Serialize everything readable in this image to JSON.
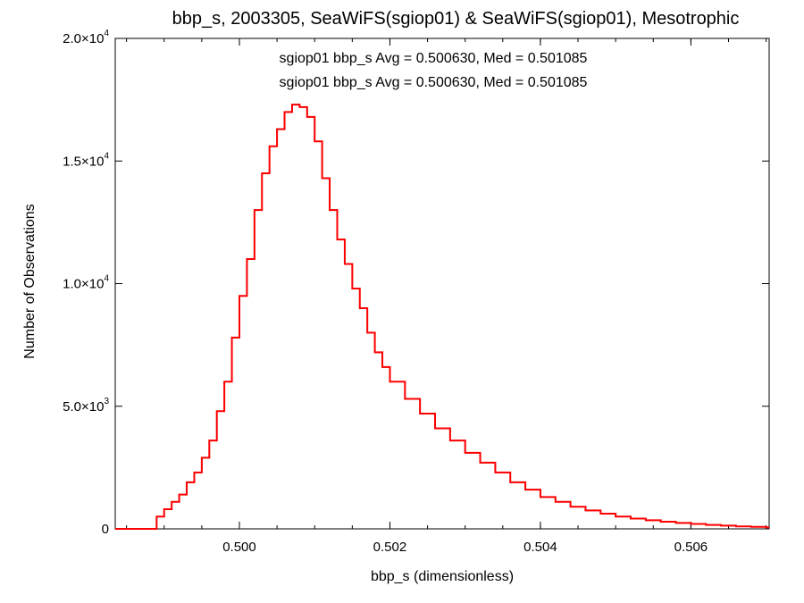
{
  "chart_data": {
    "type": "histogram",
    "title": "bbp_s, 2003305, SeaWiFS(sgiop01) & SeaWiFS(sgiop01), Mesotrophic",
    "xlabel": "bbp_s (dimensionless)",
    "ylabel": "Number of Observations",
    "xlim": [
      0.49835,
      0.50704
    ],
    "ylim": [
      0,
      20000
    ],
    "grid": false,
    "x_ticks": [
      {
        "value": 0.5,
        "label": "0.500"
      },
      {
        "value": 0.502,
        "label": "0.502"
      },
      {
        "value": 0.504,
        "label": "0.504"
      },
      {
        "value": 0.506,
        "label": "0.506"
      }
    ],
    "y_ticks": [
      {
        "value": 0,
        "mantissa": "0",
        "exponent": ""
      },
      {
        "value": 5000,
        "mantissa": "5.0×10",
        "exponent": "3"
      },
      {
        "value": 10000,
        "mantissa": "1.0×10",
        "exponent": "4"
      },
      {
        "value": 15000,
        "mantissa": "1.5×10",
        "exponent": "4"
      },
      {
        "value": 20000,
        "mantissa": "2.0×10",
        "exponent": "4"
      }
    ],
    "annotations": [
      {
        "text": "sgiop01 bbp_s Avg = 0.500630, Med = 0.501085",
        "color": "#000000"
      },
      {
        "text": "sgiop01 bbp_s Avg = 0.500630, Med = 0.501085",
        "color": "#ff0000"
      }
    ],
    "series": [
      {
        "color": "#000000",
        "x": [
          0.4988,
          0.4989,
          0.499,
          0.4991,
          0.4992,
          0.4993,
          0.4994,
          0.4995,
          0.4996,
          0.4997,
          0.4998,
          0.4999,
          0.5,
          0.5001,
          0.5002,
          0.5003,
          0.5004,
          0.5005,
          0.5006,
          0.5007,
          0.5008,
          0.5009,
          0.501,
          0.5011,
          0.5012,
          0.5013,
          0.5014,
          0.5015,
          0.5016,
          0.5017,
          0.5018,
          0.5019,
          0.502,
          0.5022,
          0.5024,
          0.5026,
          0.5028,
          0.503,
          0.5032,
          0.5034,
          0.5036,
          0.5038,
          0.504,
          0.5042,
          0.5044,
          0.5046,
          0.5048,
          0.505,
          0.5052,
          0.5054,
          0.5056,
          0.5058,
          0.506,
          0.5062,
          0.5064,
          0.5066,
          0.5068,
          0.507
        ],
        "y": [
          0,
          500,
          800,
          1100,
          1400,
          1900,
          2300,
          2900,
          3600,
          4800,
          6000,
          7800,
          9500,
          11000,
          13000,
          14500,
          15600,
          16300,
          17000,
          17300,
          17200,
          16800,
          15800,
          14300,
          13000,
          11800,
          10800,
          9800,
          9000,
          8000,
          7200,
          6600,
          6000,
          5300,
          4700,
          4100,
          3600,
          3100,
          2700,
          2300,
          1900,
          1600,
          1300,
          1100,
          900,
          750,
          620,
          500,
          420,
          350,
          290,
          240,
          200,
          160,
          130,
          100,
          80,
          60
        ]
      },
      {
        "color": "#ff0000",
        "x": [
          0.4988,
          0.4989,
          0.499,
          0.4991,
          0.4992,
          0.4993,
          0.4994,
          0.4995,
          0.4996,
          0.4997,
          0.4998,
          0.4999,
          0.5,
          0.5001,
          0.5002,
          0.5003,
          0.5004,
          0.5005,
          0.5006,
          0.5007,
          0.5008,
          0.5009,
          0.501,
          0.5011,
          0.5012,
          0.5013,
          0.5014,
          0.5015,
          0.5016,
          0.5017,
          0.5018,
          0.5019,
          0.502,
          0.5022,
          0.5024,
          0.5026,
          0.5028,
          0.503,
          0.5032,
          0.5034,
          0.5036,
          0.5038,
          0.504,
          0.5042,
          0.5044,
          0.5046,
          0.5048,
          0.505,
          0.5052,
          0.5054,
          0.5056,
          0.5058,
          0.506,
          0.5062,
          0.5064,
          0.5066,
          0.5068,
          0.507
        ],
        "y": [
          0,
          500,
          800,
          1100,
          1400,
          1900,
          2300,
          2900,
          3600,
          4800,
          6000,
          7800,
          9500,
          11000,
          13000,
          14500,
          15600,
          16300,
          17000,
          17300,
          17200,
          16800,
          15800,
          14300,
          13000,
          11800,
          10800,
          9800,
          9000,
          8000,
          7200,
          6600,
          6000,
          5300,
          4700,
          4100,
          3600,
          3100,
          2700,
          2300,
          1900,
          1600,
          1300,
          1100,
          900,
          750,
          620,
          500,
          420,
          350,
          290,
          240,
          200,
          160,
          130,
          100,
          80,
          60
        ]
      }
    ]
  }
}
